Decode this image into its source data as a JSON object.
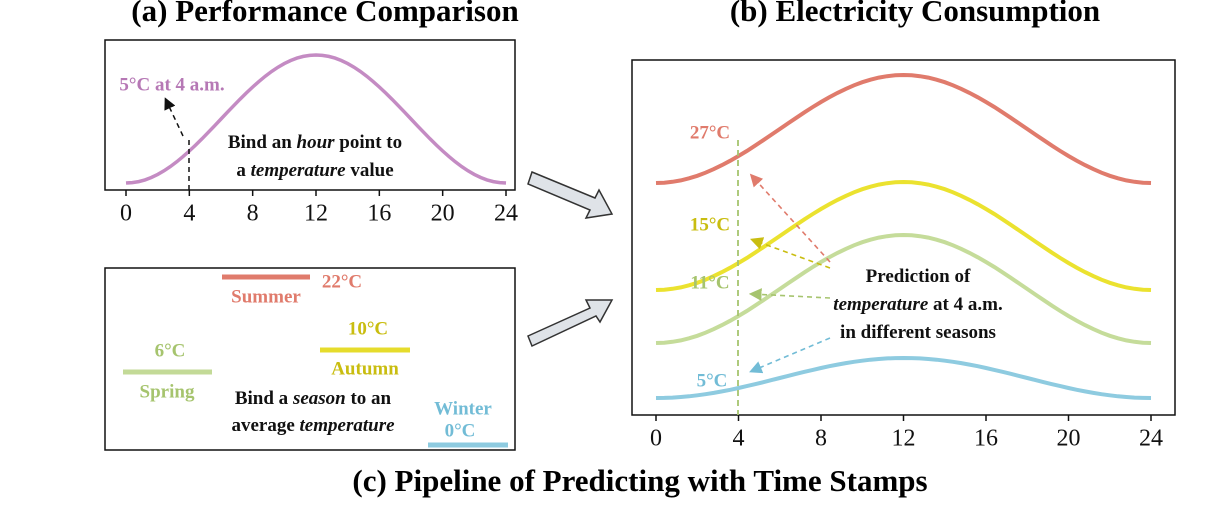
{
  "panel_a": {
    "title": "(a) Performance Comparison",
    "annotation": "5°C at 4 a.m.",
    "caption": [
      [
        "Bind an ",
        "hour",
        " point to"
      ],
      [
        "a ",
        "temperature",
        " value"
      ]
    ],
    "xticks": [
      0,
      4,
      8,
      12,
      16,
      20,
      24
    ]
  },
  "panel_b": {
    "title": "(b) Electricity Consumption",
    "labels": [
      "27°C",
      "15°C",
      "11°C",
      "5°C"
    ],
    "annotation": [
      [
        "Prediction of"
      ],
      [
        "temperature",
        " at 4 a.m."
      ],
      [
        "in different seasons"
      ]
    ],
    "xticks": [
      0,
      4,
      8,
      12,
      16,
      20,
      24
    ]
  },
  "panel_c": {
    "seasons": [
      {
        "name": "Summer",
        "temp": "22°C"
      },
      {
        "name": "Autumn",
        "temp": "10°C"
      },
      {
        "name": "Spring",
        "temp": "6°C"
      },
      {
        "name": "Winter",
        "temp": "0°C"
      }
    ],
    "caption": [
      [
        "Bind a ",
        "season",
        " to an"
      ],
      [
        "average ",
        "temperature"
      ]
    ]
  },
  "footer": {
    "title": "(c) Pipeline of Predicting with Time Stamps"
  }
}
